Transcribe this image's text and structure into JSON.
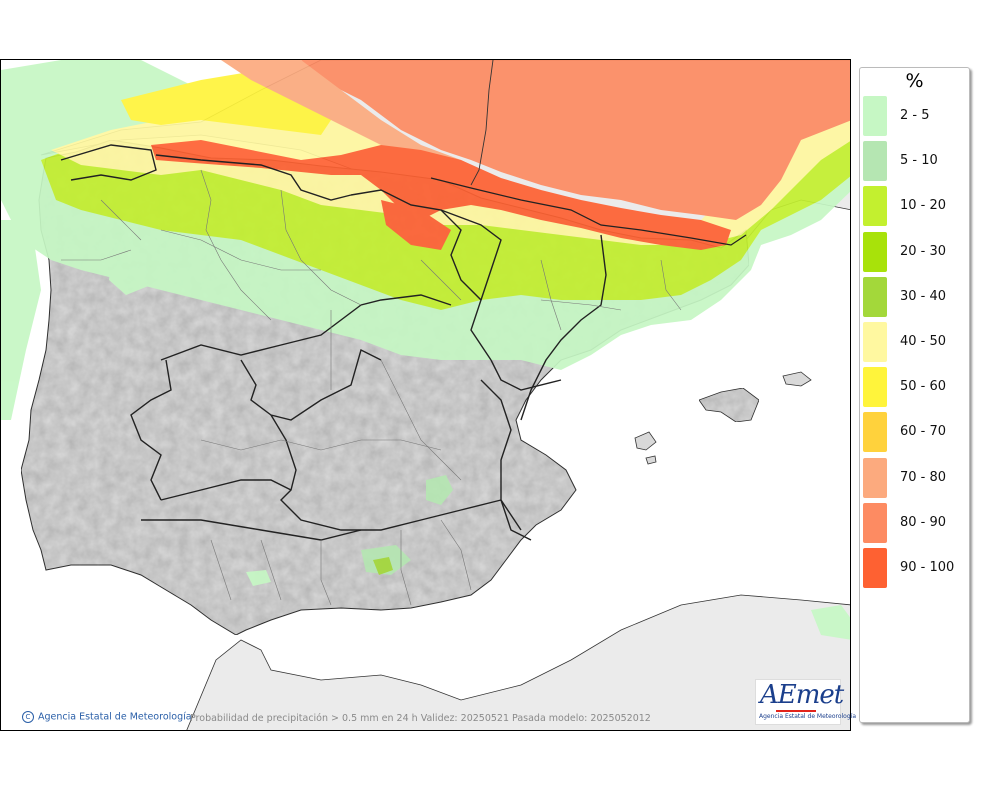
{
  "legend": {
    "title": "%",
    "items": [
      {
        "label": "2 - 5",
        "color": "#c6f7c4"
      },
      {
        "label": "5 - 10",
        "color": "#b5e6b2"
      },
      {
        "label": "10 - 20",
        "color": "#c3f02f"
      },
      {
        "label": "20 - 30",
        "color": "#a8e20a"
      },
      {
        "label": "30 - 40",
        "color": "#a3d83a"
      },
      {
        "label": "40 - 50",
        "color": "#fff8a0"
      },
      {
        "label": "50 - 60",
        "color": "#fff43b"
      },
      {
        "label": "60 - 70",
        "color": "#ffd23c"
      },
      {
        "label": "70 - 80",
        "color": "#fcaa7e"
      },
      {
        "label": "80 - 90",
        "color": "#fd8b62"
      },
      {
        "label": "90 - 100",
        "color": "#fe6132"
      }
    ]
  },
  "credit": "Agencia Estatal de Meteorología",
  "caption": "Probabilidad de precipitación > 0.5 mm en 24 h Validez: 20250521 Pasada modelo: 2025052012",
  "logo": {
    "text": "AEmet",
    "subtitle": "Agencia Estatal de Meteorología"
  },
  "colors": {
    "sea": "#ffffff",
    "land": "#d9d9d9",
    "outside_land": "#ebebeb",
    "border": "#222222"
  }
}
